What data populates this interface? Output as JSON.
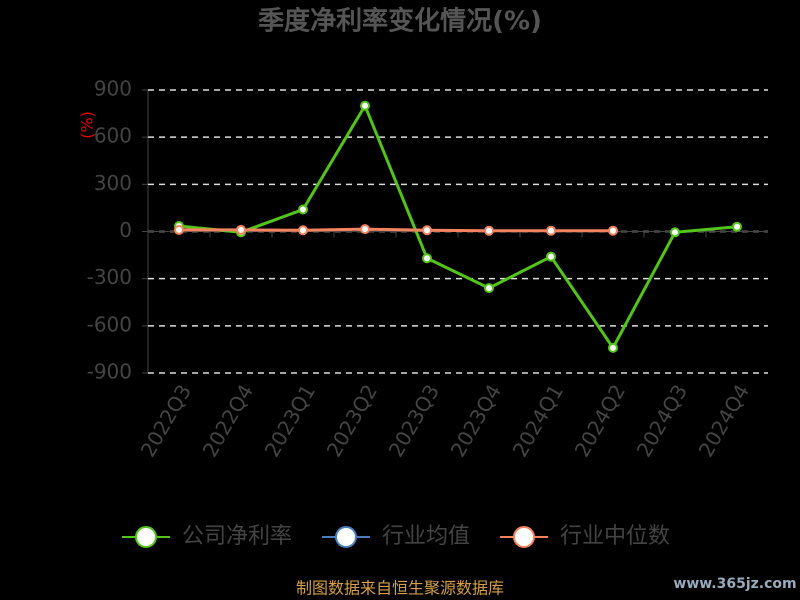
{
  "chart_data": {
    "type": "line",
    "title": "季度净利率变化情况(%)",
    "y_label": "(%)",
    "categories": [
      "2022Q3",
      "2022Q4",
      "2023Q1",
      "2023Q2",
      "2023Q3",
      "2023Q4",
      "2024Q1",
      "2024Q2",
      "2024Q3",
      "2024Q4"
    ],
    "series": [
      {
        "name": "公司净利率",
        "color": "#52c41a",
        "values": [
          35,
          -5,
          140,
          800,
          -170,
          -360,
          -160,
          -740,
          -5,
          30
        ]
      },
      {
        "name": "行业均值",
        "color": "#4a7ebb",
        "values": [
          null,
          null,
          null,
          null,
          null,
          null,
          null,
          null,
          null,
          null
        ]
      },
      {
        "name": "行业中位数",
        "color": "#f4845f",
        "values": [
          10,
          10,
          8,
          15,
          8,
          5,
          5,
          5,
          null,
          null
        ]
      }
    ],
    "ylim": [
      -900,
      900
    ],
    "yticks": [
      -900,
      -600,
      -300,
      0,
      300,
      600,
      900
    ],
    "grid": true,
    "source": "制图数据来自恒生聚源数据库",
    "watermark": "www.365jz.com"
  }
}
